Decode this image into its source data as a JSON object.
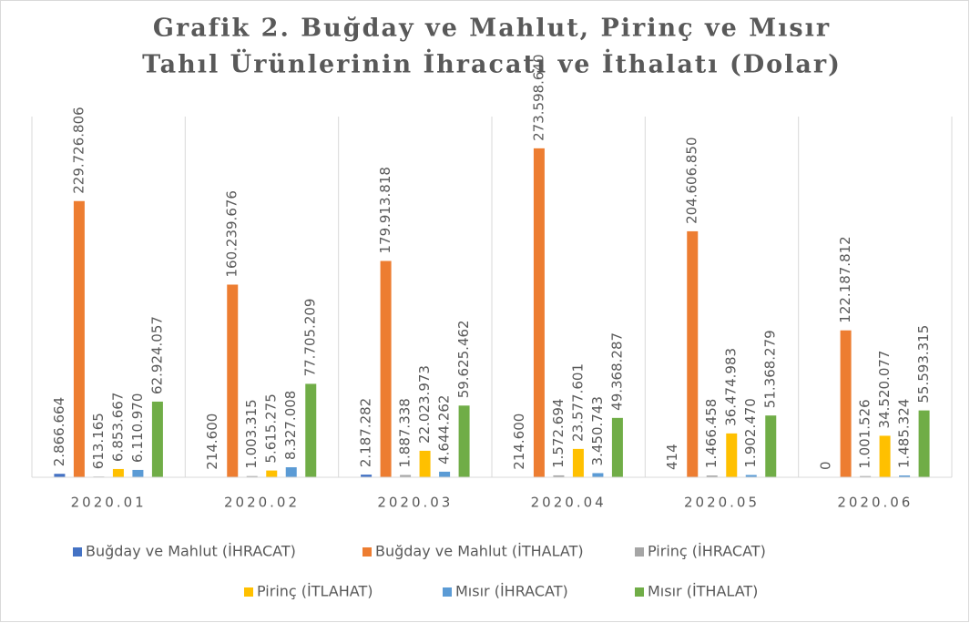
{
  "chart_data": {
    "type": "bar",
    "title": [
      "Grafik 2. Buğday ve Mahlut, Pirinç ve Mısır",
      "Tahıl Ürünlerinin İhracatı ve İthalatı (Dolar)"
    ],
    "categories": [
      "2020.01",
      "2020.02",
      "2020.03",
      "2020.04",
      "2020.05",
      "2020.06"
    ],
    "ylim": [
      0,
      300000000
    ],
    "legend": "bottom",
    "series": [
      {
        "name": "Buğday ve Mahlut (İHRACAT)",
        "color": "#4472c4",
        "values": [
          2866664,
          214600,
          2187282,
          214600,
          414,
          0
        ],
        "value_labels": [
          "2.866.664",
          "214.600",
          "2.187.282",
          "214.600",
          "414",
          "0"
        ]
      },
      {
        "name": "Buğday ve Mahlut (İTHALAT)",
        "color": "#ed7d31",
        "values": [
          229726806,
          160239676,
          179913818,
          273598640,
          204606850,
          122187812
        ],
        "value_labels": [
          "229.726.806",
          "160.239.676",
          "179.913.818",
          "273.598.640",
          "204.606.850",
          "122.187.812"
        ]
      },
      {
        "name": "Pirinç (İHRACAT)",
        "color": "#a5a5a5",
        "values": [
          613165,
          1003315,
          1887338,
          1572694,
          1466458,
          1001526
        ],
        "value_labels": [
          "613.165",
          "1.003.315",
          "1.887.338",
          "1.572.694",
          "1.466.458",
          "1.001.526"
        ]
      },
      {
        "name": "Pirinç (İTLAHAT)",
        "color": "#ffc000",
        "values": [
          6853667,
          5615275,
          22023973,
          23577601,
          36474983,
          34520077
        ],
        "value_labels": [
          "6.853.667",
          "5.615.275",
          "22.023.973",
          "23.577.601",
          "36.474.983",
          "34.520.077"
        ]
      },
      {
        "name": "Mısır (İHRACAT)",
        "color": "#5b9bd5",
        "values": [
          6110970,
          8327008,
          4644262,
          3450743,
          1902470,
          1485324
        ],
        "value_labels": [
          "6.110.970",
          "8.327.008",
          "4.644.262",
          "3.450.743",
          "1.902.470",
          "1.485.324"
        ]
      },
      {
        "name": "Mısır (İTHALAT)",
        "color": "#70ad47",
        "values": [
          62924057,
          77705209,
          59625462,
          49368287,
          51368279,
          55593315
        ],
        "value_labels": [
          "62.924.057",
          "77.705.209",
          "59.625.462",
          "49.368.287",
          "51.368.279",
          "55.593.315"
        ]
      }
    ]
  }
}
